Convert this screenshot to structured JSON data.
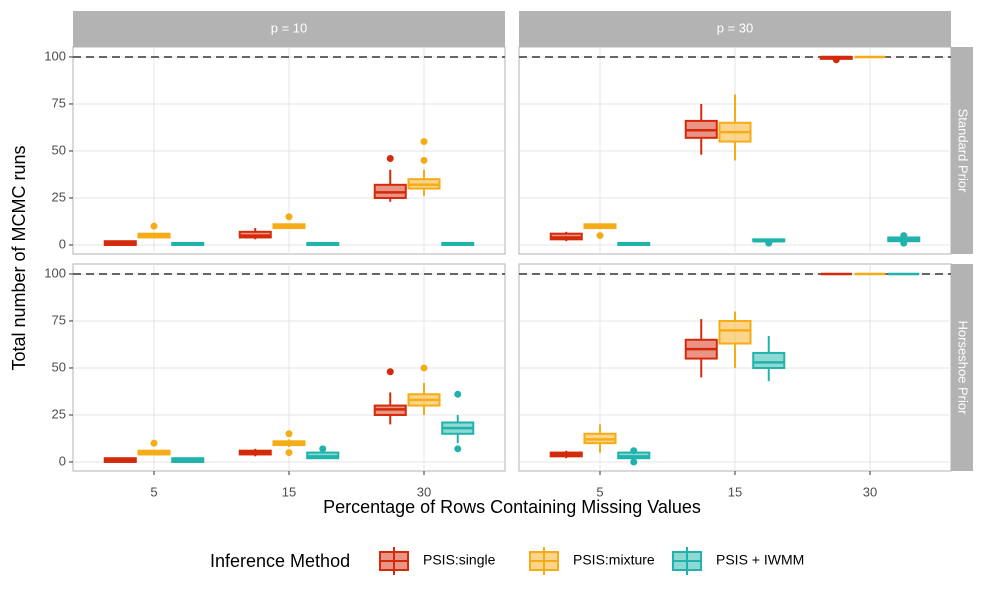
{
  "chart_data": {
    "type": "box",
    "ylabel": "Total number of MCMC runs",
    "xlabel": "Percentage of Rows Containing Missing Values",
    "legend_title": "Inference Method",
    "columns": [
      "p = 10",
      "p = 30"
    ],
    "rows": [
      "Standard Prior",
      "Horseshoe Prior"
    ],
    "categories": [
      "5",
      "15",
      "30"
    ],
    "ylim": [
      -4.8,
      105.3
    ],
    "yticks": [
      0,
      25,
      50,
      75,
      100
    ],
    "reference_line": 100,
    "grid": true,
    "legend_position": "bottom",
    "series": [
      {
        "name": "PSIS:single",
        "color": "#d42a0a"
      },
      {
        "name": "PSIS:mixture",
        "color": "#f5ac17"
      },
      {
        "name": "PSIS + IWMM",
        "color": "#1fb3ab"
      }
    ],
    "panels": [
      {
        "boxes": [
          [
            {
              "min": 0,
              "q1": 0,
              "median": 1,
              "q3": 2,
              "max": 2
            },
            {
              "min": 3,
              "q1": 4,
              "median": 5,
              "q3": 7,
              "max": 9
            },
            {
              "min": 23,
              "q1": 25,
              "median": 28,
              "q3": 32,
              "max": 40,
              "outliers": [
                46
              ]
            }
          ],
          [
            {
              "min": 4,
              "q1": 4,
              "median": 5,
              "q3": 6,
              "max": 6,
              "outliers": [
                10
              ]
            },
            {
              "min": 9,
              "q1": 9,
              "median": 10,
              "q3": 11,
              "max": 11,
              "outliers": [
                15
              ]
            },
            {
              "min": 26,
              "q1": 30,
              "median": 32,
              "q3": 35,
              "max": 40,
              "outliers": [
                45,
                55
              ]
            }
          ],
          [
            {
              "min": 0,
              "q1": 0,
              "median": 1,
              "q3": 1,
              "max": 1
            },
            {
              "min": 0,
              "q1": 0,
              "median": 1,
              "q3": 1,
              "max": 1
            },
            {
              "min": 0,
              "q1": 0,
              "median": 1,
              "q3": 1,
              "max": 1
            }
          ]
        ]
      },
      {
        "boxes": [
          [
            {
              "min": 2,
              "q1": 3,
              "median": 4,
              "q3": 6,
              "max": 7
            },
            {
              "min": 48,
              "q1": 57,
              "median": 61,
              "q3": 66,
              "max": 75
            },
            {
              "min": 99,
              "q1": 99,
              "median": 100,
              "q3": 100,
              "max": 100,
              "outliers": [
                98.5
              ]
            }
          ],
          [
            {
              "min": 9,
              "q1": 9,
              "median": 10,
              "q3": 11,
              "max": 11,
              "outliers": [
                5
              ]
            },
            {
              "min": 45,
              "q1": 55,
              "median": 60,
              "q3": 65,
              "max": 80
            },
            {
              "min": 100,
              "q1": 100,
              "median": 100,
              "q3": 100,
              "max": 100
            }
          ],
          [
            {
              "min": 0,
              "q1": 0,
              "median": 1,
              "q3": 1,
              "max": 1
            },
            {
              "min": 2,
              "q1": 2,
              "median": 2,
              "q3": 3,
              "max": 3,
              "outliers": [
                1
              ]
            },
            {
              "min": 2,
              "q1": 2,
              "median": 3,
              "q3": 4,
              "max": 4,
              "outliers": [
                1,
                5
              ]
            }
          ]
        ]
      },
      {
        "boxes": [
          [
            {
              "min": 0,
              "q1": 0,
              "median": 1,
              "q3": 2,
              "max": 2
            },
            {
              "min": 3,
              "q1": 4,
              "median": 5,
              "q3": 6,
              "max": 7
            },
            {
              "min": 20,
              "q1": 25,
              "median": 28,
              "q3": 30,
              "max": 37,
              "outliers": [
                48
              ]
            }
          ],
          [
            {
              "min": 4,
              "q1": 4,
              "median": 5,
              "q3": 6,
              "max": 6,
              "outliers": [
                10
              ]
            },
            {
              "min": 8,
              "q1": 9,
              "median": 10,
              "q3": 11,
              "max": 12,
              "outliers": [
                5,
                15
              ]
            },
            {
              "min": 25,
              "q1": 30,
              "median": 33,
              "q3": 36,
              "max": 42,
              "outliers": [
                50
              ]
            }
          ],
          [
            {
              "min": 0,
              "q1": 0,
              "median": 1,
              "q3": 2,
              "max": 2
            },
            {
              "min": 2,
              "q1": 2,
              "median": 3,
              "q3": 5,
              "max": 5,
              "outliers": [
                7
              ]
            },
            {
              "min": 10,
              "q1": 15,
              "median": 18,
              "q3": 21,
              "max": 25,
              "outliers": [
                7,
                36
              ]
            }
          ]
        ]
      },
      {
        "boxes": [
          [
            {
              "min": 2,
              "q1": 3,
              "median": 4,
              "q3": 5,
              "max": 6
            },
            {
              "min": 45,
              "q1": 55,
              "median": 60,
              "q3": 65,
              "max": 76
            },
            {
              "min": 100,
              "q1": 100,
              "median": 100,
              "q3": 100,
              "max": 100
            }
          ],
          [
            {
              "min": 5,
              "q1": 10,
              "median": 12,
              "q3": 15,
              "max": 20
            },
            {
              "min": 50,
              "q1": 63,
              "median": 70,
              "q3": 75,
              "max": 80
            },
            {
              "min": 100,
              "q1": 100,
              "median": 100,
              "q3": 100,
              "max": 100
            }
          ],
          [
            {
              "min": 1,
              "q1": 2,
              "median": 3,
              "q3": 5,
              "max": 5,
              "outliers": [
                0,
                6
              ]
            },
            {
              "min": 43,
              "q1": 50,
              "median": 53,
              "q3": 58,
              "max": 67
            },
            {
              "min": 100,
              "q1": 100,
              "median": 100,
              "q3": 100,
              "max": 100
            }
          ]
        ]
      }
    ]
  }
}
